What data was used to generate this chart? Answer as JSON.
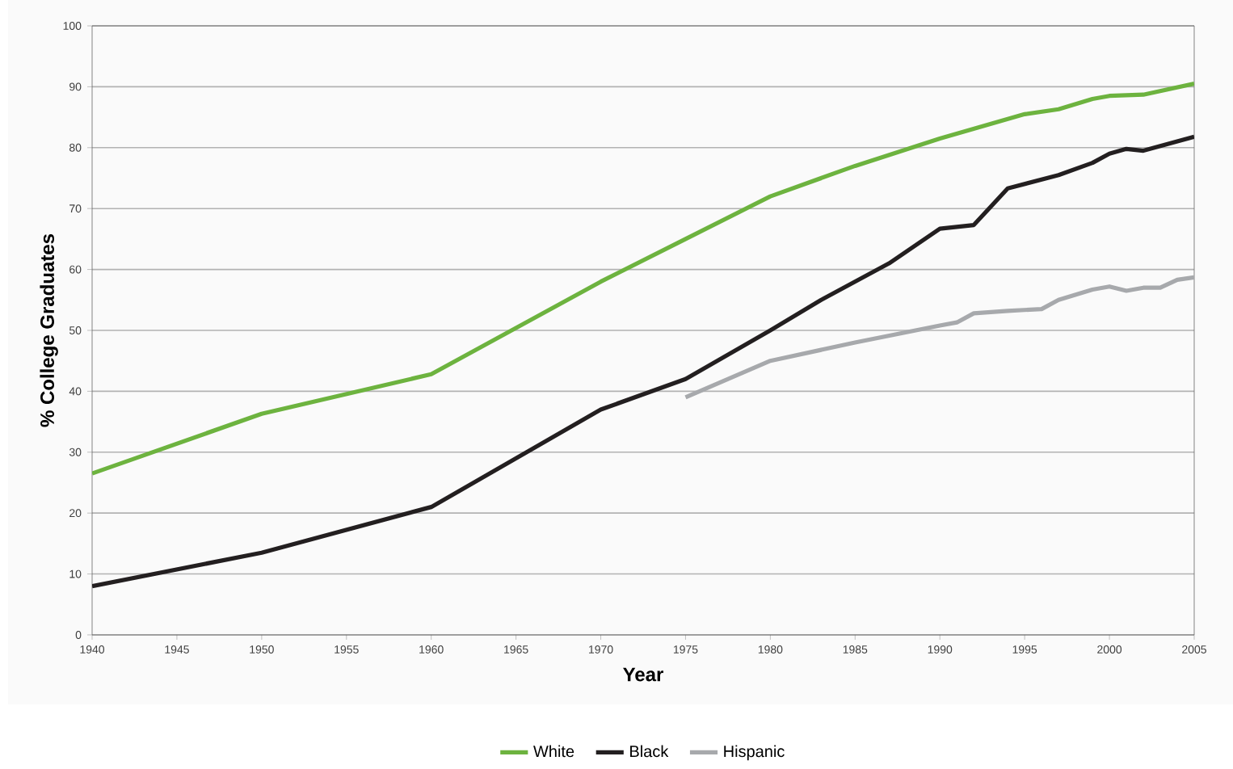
{
  "chart_data": {
    "type": "line",
    "xlabel": "Year",
    "ylabel": "% College Graduates",
    "xlim": [
      1940,
      2005
    ],
    "xticks": [
      1940,
      1945,
      1950,
      1955,
      1960,
      1965,
      1970,
      1975,
      1980,
      1985,
      1990,
      1995,
      2000,
      2005
    ],
    "ylim": [
      0,
      100
    ],
    "yticks": [
      0,
      10,
      20,
      30,
      40,
      50,
      60,
      70,
      80,
      90,
      100
    ],
    "grid": "y",
    "legend": "bottom",
    "line_style": "solid",
    "series": [
      {
        "name": "White",
        "color": "#6db33f",
        "x": [
          1940,
          1950,
          1960,
          1970,
          1975,
          1980,
          1985,
          1990,
          1995,
          1997,
          1999,
          2000,
          2002,
          2005
        ],
        "values": [
          26.5,
          36.3,
          42.8,
          58,
          65,
          72,
          77,
          81.5,
          85.5,
          86.3,
          88,
          88.5,
          88.7,
          90.5
        ]
      },
      {
        "name": "Black",
        "color": "#231f20",
        "x": [
          1940,
          1950,
          1960,
          1965,
          1970,
          1975,
          1980,
          1983,
          1987,
          1990,
          1992,
          1994,
          1997,
          1999,
          2000,
          2001,
          2002,
          2005
        ],
        "values": [
          8,
          13.5,
          21,
          29,
          37,
          42,
          50,
          55,
          61,
          66.7,
          67.3,
          73.3,
          75.5,
          77.5,
          79,
          79.8,
          79.5,
          81.8
        ]
      },
      {
        "name": "Hispanic",
        "color": "#a7a9ac",
        "x": [
          1975,
          1980,
          1985,
          1990,
          1991,
          1992,
          1994,
          1996,
          1997,
          1999,
          2000,
          2001,
          2002,
          2003,
          2004,
          2005
        ],
        "values": [
          39,
          45,
          48,
          50.8,
          51.3,
          52.8,
          53.2,
          53.5,
          55,
          56.7,
          57.2,
          56.5,
          57,
          57,
          58.3,
          58.7
        ]
      }
    ]
  }
}
